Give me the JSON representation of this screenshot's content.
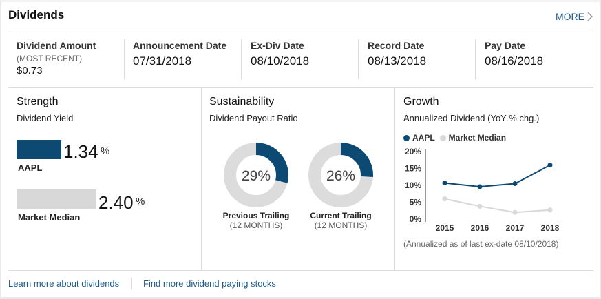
{
  "header": {
    "title": "Dividends",
    "more_label": "MORE"
  },
  "stats": {
    "amount": {
      "label": "Dividend Amount",
      "sublabel": "(MOST RECENT)",
      "value": "$0.73"
    },
    "announcement": {
      "label": "Announcement Date",
      "value": "07/31/2018"
    },
    "exdiv": {
      "label": "Ex-Div Date",
      "value": "08/10/2018"
    },
    "record": {
      "label": "Record Date",
      "value": "08/13/2018"
    },
    "pay": {
      "label": "Pay Date",
      "value": "08/16/2018"
    }
  },
  "strength": {
    "title": "Strength",
    "subtitle": "Dividend Yield",
    "percent_sign": "%",
    "aapl": {
      "label": "AAPL",
      "value": 1.34,
      "value_text": "1.34",
      "color": "#0d4a73"
    },
    "median": {
      "label": "Market Median",
      "value": 2.4,
      "value_text": "2.40",
      "color": "#d8d8d8"
    }
  },
  "sustainability": {
    "title": "Sustainability",
    "subtitle": "Dividend Payout Ratio",
    "previous": {
      "value": 29,
      "value_text": "29%",
      "label": "Previous Trailing",
      "sublabel": "(12 MONTHS)"
    },
    "current": {
      "value": 26,
      "value_text": "26%",
      "label": "Current Trailing",
      "sublabel": "(12 MONTHS)"
    },
    "fill_color": "#0d4a73",
    "track_color": "#dcdcdc"
  },
  "growth": {
    "title": "Growth",
    "subtitle": "Annualized Dividend (YoY % chg.)",
    "note": "(Annualized as of last ex-date 08/10/2018)"
  },
  "chart_data": {
    "type": "line",
    "title": "",
    "xlabel": "",
    "ylabel": "",
    "x": [
      "2015",
      "2016",
      "2017",
      "2018"
    ],
    "ylim": [
      0,
      20
    ],
    "yticks": [
      "0%",
      "5%",
      "10%",
      "15%",
      "20%"
    ],
    "grid": false,
    "legend": "top-left",
    "series": [
      {
        "name": "AAPL",
        "color": "#0d4a73",
        "values": [
          10.7,
          9.6,
          10.5,
          16.0
        ]
      },
      {
        "name": "Market Median",
        "color": "#d8d8d8",
        "values": [
          6.0,
          3.8,
          2.0,
          2.7
        ]
      }
    ]
  },
  "footer": {
    "learn_link": "Learn more about dividends",
    "find_link": "Find more dividend paying stocks"
  }
}
